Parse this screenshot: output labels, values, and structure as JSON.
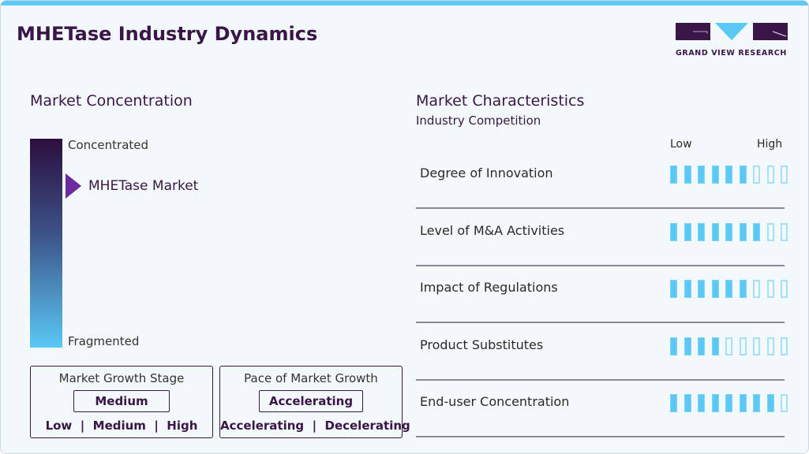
{
  "title": "MHETase Industry Dynamics",
  "logo": {
    "text": "GRAND VIEW RESEARCH"
  },
  "colors": {
    "accent": "#5bc8f5",
    "brand": "#3a1548",
    "pointer": "#6b2a9e"
  },
  "concentration": {
    "heading": "Market Concentration",
    "top": "Concentrated",
    "bottom": "Fragmented",
    "marker": "MHETase Market",
    "marker_level": 0.78
  },
  "growth_stage": {
    "title": "Market Growth Stage",
    "value": "Medium",
    "options": "Low  |  Medium  |  High"
  },
  "pace": {
    "title": "Pace of Market Growth",
    "value": "Accelerating",
    "options": "Accelerating  |  Decelerating"
  },
  "characteristics": {
    "heading": "Market Characteristics",
    "subheading": "Industry Competition",
    "low": "Low",
    "high": "High",
    "max": 9,
    "rows": [
      {
        "label": "Degree of Innovation",
        "score": 6
      },
      {
        "label": "Level of M&A Activities",
        "score": 7
      },
      {
        "label": "Impact of Regulations",
        "score": 6
      },
      {
        "label": "Product Substitutes",
        "score": 4
      },
      {
        "label": "End-user Concentration",
        "score": 8
      }
    ]
  }
}
